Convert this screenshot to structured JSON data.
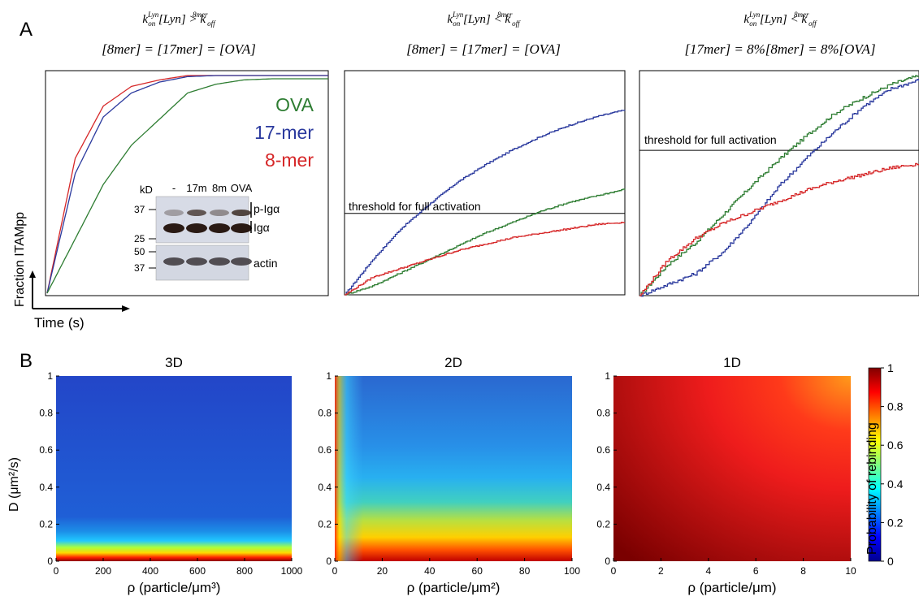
{
  "panel_a": {
    "label": "A",
    "y_axis_label": "Fraction ITAMpp",
    "x_axis_label": "Time (s)",
    "threshold_label": "threshold for full activation",
    "titles": [
      {
        "line1": {
          "k": "k",
          "k_sub": "on",
          "k_sup": "Lyn",
          "conc": "[Lyn]",
          "op": ">",
          "k2": "k",
          "k2_sub": "off",
          "k2_sup": "8mer"
        },
        "line2": "[8mer] = [17mer] = [OVA]"
      },
      {
        "line1": {
          "k": "k",
          "k_sub": "on",
          "k_sup": "Lyn",
          "conc": "[Lyn]",
          "op": "<",
          "k2": "k",
          "k2_sub": "off",
          "k2_sup": "8mer"
        },
        "line2": "[8mer] = [17mer] = [OVA]"
      },
      {
        "line1": {
          "k": "k",
          "k_sub": "on",
          "k_sup": "Lyn",
          "conc": "[Lyn]",
          "op": "<",
          "k2": "k",
          "k2_sub": "off",
          "k2_sup": "8mer"
        },
        "line2": "[17mer] = 8%[8mer] = 8%[OVA]"
      }
    ],
    "legend": [
      {
        "name": "OVA",
        "color": "#2e7d32"
      },
      {
        "name": "17-mer",
        "color": "#2b3a9e"
      },
      {
        "name": "8-mer",
        "color": "#d62728"
      }
    ],
    "blot": {
      "unit_label": "kD",
      "lanes": [
        "-",
        "17m",
        "8m",
        "OVA"
      ],
      "markers_top": [
        "37",
        "25"
      ],
      "markers_bottom": [
        "50",
        "37"
      ],
      "band_labels": [
        "p-Igα",
        "Igα",
        "actin"
      ]
    }
  },
  "panel_b": {
    "label": "B",
    "colorbar_label": "Probability of rebinding",
    "colorbar_ticks": [
      "1",
      "0.8",
      "0.6",
      "0.4",
      "0.2",
      "0"
    ],
    "y_axis_label": "D (μm²/s)",
    "y_ticks": [
      "1",
      "0.8",
      "0.6",
      "0.4",
      "0.2",
      "0"
    ],
    "heatmaps": [
      {
        "title": "3D",
        "xlabel": "ρ (particle/μm³)",
        "x_ticks": [
          "0",
          "200",
          "400",
          "600",
          "800",
          "1000"
        ]
      },
      {
        "title": "2D",
        "xlabel": "ρ (particle/μm²)",
        "x_ticks": [
          "0",
          "20",
          "40",
          "60",
          "80",
          "100"
        ]
      },
      {
        "title": "1D",
        "xlabel": "ρ (particle/μm)",
        "x_ticks": [
          "0",
          "2",
          "4",
          "6",
          "8",
          "10"
        ]
      }
    ]
  },
  "chart_data": [
    {
      "type": "line",
      "panel": "A-left",
      "xlabel": "Time (s)",
      "ylabel": "Fraction ITAMpp",
      "x": [
        0,
        0.05,
        0.1,
        0.15,
        0.2,
        0.3,
        0.4,
        0.5,
        0.6,
        0.8,
        1.0
      ],
      "series": [
        {
          "name": "8-mer",
          "values": [
            0,
            0.62,
            0.86,
            0.95,
            0.98,
            1.0,
            1.0,
            1.0,
            1.0,
            1.0,
            1.0
          ]
        },
        {
          "name": "17-mer",
          "values": [
            0,
            0.55,
            0.81,
            0.92,
            0.97,
            0.995,
            1.0,
            1.0,
            1.0,
            1.0,
            1.0
          ]
        },
        {
          "name": "OVA",
          "values": [
            0,
            0.25,
            0.5,
            0.68,
            0.8,
            0.92,
            0.96,
            0.98,
            0.985,
            0.985,
            0.985
          ]
        }
      ]
    },
    {
      "type": "line",
      "panel": "A-middle",
      "threshold": 0.37,
      "x": [
        0,
        0.1,
        0.2,
        0.3,
        0.4,
        0.5,
        0.6,
        0.7,
        0.8,
        0.9,
        1.0
      ],
      "series": [
        {
          "name": "17-mer",
          "values": [
            0,
            0.16,
            0.3,
            0.41,
            0.51,
            0.59,
            0.66,
            0.72,
            0.77,
            0.81,
            0.84
          ]
        },
        {
          "name": "OVA",
          "values": [
            0,
            0.04,
            0.1,
            0.16,
            0.22,
            0.28,
            0.33,
            0.38,
            0.42,
            0.45,
            0.48
          ]
        },
        {
          "name": "8-mer",
          "values": [
            0,
            0.08,
            0.12,
            0.16,
            0.2,
            0.23,
            0.26,
            0.28,
            0.3,
            0.32,
            0.33
          ]
        }
      ]
    },
    {
      "type": "line",
      "panel": "A-right",
      "threshold": 0.66,
      "x": [
        0,
        0.1,
        0.2,
        0.3,
        0.4,
        0.5,
        0.6,
        0.7,
        0.8,
        0.9,
        1.0
      ],
      "series": [
        {
          "name": "OVA",
          "values": [
            0,
            0.14,
            0.24,
            0.37,
            0.5,
            0.62,
            0.73,
            0.83,
            0.9,
            0.96,
            1.0
          ]
        },
        {
          "name": "17-mer",
          "values": [
            0,
            0.05,
            0.1,
            0.2,
            0.34,
            0.5,
            0.63,
            0.75,
            0.86,
            0.94,
            0.98
          ]
        },
        {
          "name": "8-mer",
          "values": [
            0,
            0.16,
            0.26,
            0.33,
            0.38,
            0.43,
            0.48,
            0.52,
            0.55,
            0.58,
            0.6
          ]
        }
      ]
    },
    {
      "type": "heatmap",
      "panel": "B-3D",
      "xlim": [
        0,
        1000
      ],
      "ylim": [
        0,
        1
      ],
      "xlabel": "ρ (particle/μm³)",
      "ylabel": "D (μm²/s)",
      "colorscale": "jet",
      "zlim": [
        0,
        1
      ]
    },
    {
      "type": "heatmap",
      "panel": "B-2D",
      "xlim": [
        0,
        100
      ],
      "ylim": [
        0,
        1
      ],
      "xlabel": "ρ (particle/μm²)",
      "colorscale": "jet",
      "zlim": [
        0,
        1
      ]
    },
    {
      "type": "heatmap",
      "panel": "B-1D",
      "xlim": [
        0,
        10
      ],
      "ylim": [
        0,
        1
      ],
      "xlabel": "ρ (particle/μm)",
      "colorscale": "jet",
      "zlim": [
        0,
        1
      ]
    }
  ]
}
